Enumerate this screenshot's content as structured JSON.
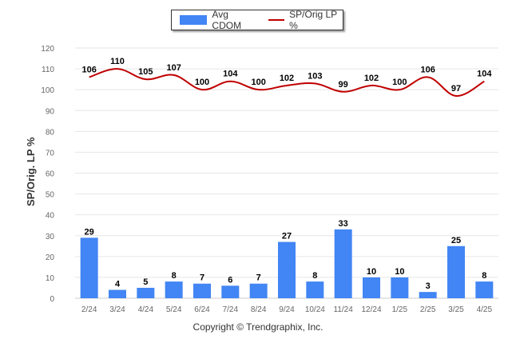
{
  "legend": {
    "bar_label": "Avg CDOM",
    "line_label": "SP/Orig LP %"
  },
  "copyright": "Copyright © Trendgraphix, Inc.",
  "colors": {
    "bar": "#4285f4",
    "line": "#c00000",
    "grid": "#e6e6e6",
    "axis_text": "#666666",
    "label_text": "#000000"
  },
  "chart_data": {
    "type": "bar",
    "title": "",
    "xlabel": "",
    "ylabel": "SP/Orig. LP %",
    "ylim": [
      0,
      120
    ],
    "yticks": [
      0,
      10,
      20,
      30,
      40,
      50,
      60,
      70,
      80,
      90,
      100,
      110,
      120
    ],
    "grid": true,
    "legend_position": "top-center",
    "categories": [
      "2/24",
      "3/24",
      "4/24",
      "5/24",
      "6/24",
      "7/24",
      "8/24",
      "9/24",
      "10/24",
      "11/24",
      "12/24",
      "1/25",
      "2/25",
      "3/25",
      "4/25"
    ],
    "series": [
      {
        "name": "Avg CDOM",
        "type": "bar",
        "values": [
          29,
          4,
          5,
          8,
          7,
          6,
          7,
          27,
          8,
          33,
          10,
          10,
          3,
          25,
          8
        ]
      },
      {
        "name": "SP/Orig LP %",
        "type": "line",
        "values": [
          106,
          110,
          105,
          107,
          100,
          104,
          100,
          102,
          103,
          99,
          102,
          100,
          106,
          97,
          104
        ]
      }
    ]
  }
}
